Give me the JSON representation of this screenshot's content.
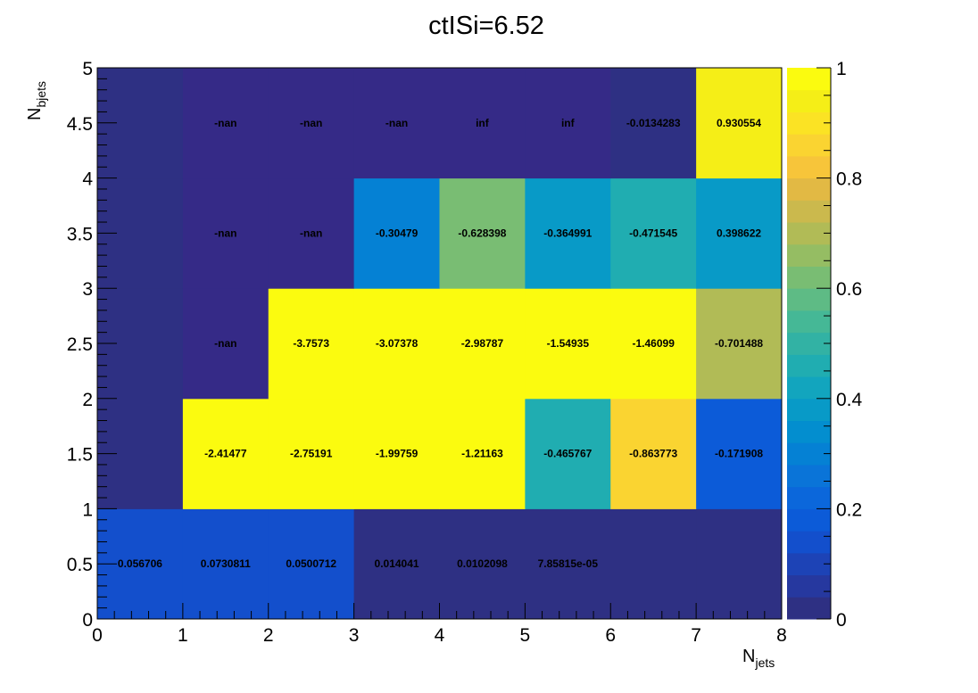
{
  "chart_data": {
    "type": "heatmap",
    "title": "ctISi=6.52",
    "xlabel_main": "N",
    "xlabel_sub": "jets",
    "ylabel_main": "N",
    "ylabel_sub": "bjets",
    "xlim": [
      0,
      8
    ],
    "ylim": [
      0,
      5
    ],
    "x_bins": [
      0,
      1,
      2,
      3,
      4,
      5,
      6,
      7,
      8
    ],
    "y_bins": [
      0,
      1,
      2,
      3,
      4,
      5
    ],
    "x_ticks": [
      "0",
      "1",
      "2",
      "3",
      "4",
      "5",
      "6",
      "7",
      "8"
    ],
    "y_ticks": [
      "0",
      "0.5",
      "1",
      "1.5",
      "2",
      "2.5",
      "3",
      "3.5",
      "4",
      "4.5",
      "5"
    ],
    "zlim": [
      0,
      1
    ],
    "z_ticks": [
      "0",
      "0.2",
      "0.4",
      "0.6",
      "0.8",
      "1"
    ],
    "cells": [
      {
        "ix": 0,
        "iy": 0,
        "color_level": 0.13,
        "label": "0.056706"
      },
      {
        "ix": 1,
        "iy": 0,
        "color_level": 0.13,
        "label": "0.0730811"
      },
      {
        "ix": 2,
        "iy": 0,
        "color_level": 0.13,
        "label": "0.0500712"
      },
      {
        "ix": 3,
        "iy": 0,
        "color_level": 0.01,
        "label": "0.014041"
      },
      {
        "ix": 4,
        "iy": 0,
        "color_level": 0.01,
        "label": "0.0102098"
      },
      {
        "ix": 5,
        "iy": 0,
        "color_level": 0.01,
        "label": "7.85815e-05"
      },
      {
        "ix": 6,
        "iy": 0,
        "color_level": 0.01,
        "label": ""
      },
      {
        "ix": 7,
        "iy": 0,
        "color_level": 0.01,
        "label": ""
      },
      {
        "ix": 0,
        "iy": 1,
        "color_level": 0.01,
        "label": ""
      },
      {
        "ix": 1,
        "iy": 1,
        "color_level": 1.0,
        "label": "-2.41477"
      },
      {
        "ix": 2,
        "iy": 1,
        "color_level": 1.0,
        "label": "-2.75191"
      },
      {
        "ix": 3,
        "iy": 1,
        "color_level": 1.0,
        "label": "-1.99759"
      },
      {
        "ix": 4,
        "iy": 1,
        "color_level": 1.0,
        "label": "-1.21163"
      },
      {
        "ix": 5,
        "iy": 1,
        "color_level": 0.466,
        "label": "-0.465767"
      },
      {
        "ix": 6,
        "iy": 1,
        "color_level": 0.864,
        "label": "-0.863773"
      },
      {
        "ix": 7,
        "iy": 1,
        "color_level": 0.172,
        "label": "-0.171908"
      },
      {
        "ix": 0,
        "iy": 2,
        "color_level": 0.01,
        "label": ""
      },
      {
        "ix": 1,
        "iy": 2,
        "color_level": -1,
        "label": "-nan"
      },
      {
        "ix": 2,
        "iy": 2,
        "color_level": 1.0,
        "label": "-3.7573"
      },
      {
        "ix": 3,
        "iy": 2,
        "color_level": 1.0,
        "label": "-3.07378"
      },
      {
        "ix": 4,
        "iy": 2,
        "color_level": 1.0,
        "label": "-2.98787"
      },
      {
        "ix": 5,
        "iy": 2,
        "color_level": 1.0,
        "label": "-1.54935"
      },
      {
        "ix": 6,
        "iy": 2,
        "color_level": 1.0,
        "label": "-1.46099"
      },
      {
        "ix": 7,
        "iy": 2,
        "color_level": 0.701,
        "label": "-0.701488"
      },
      {
        "ix": 0,
        "iy": 3,
        "color_level": 0.01,
        "label": ""
      },
      {
        "ix": 1,
        "iy": 3,
        "color_level": -1,
        "label": "-nan"
      },
      {
        "ix": 2,
        "iy": 3,
        "color_level": -1,
        "label": "-nan"
      },
      {
        "ix": 3,
        "iy": 3,
        "color_level": 0.305,
        "label": "-0.30479"
      },
      {
        "ix": 4,
        "iy": 3,
        "color_level": 0.628,
        "label": "-0.628398"
      },
      {
        "ix": 5,
        "iy": 3,
        "color_level": 0.365,
        "label": "-0.364991"
      },
      {
        "ix": 6,
        "iy": 3,
        "color_level": 0.472,
        "label": "-0.471545"
      },
      {
        "ix": 7,
        "iy": 3,
        "color_level": 0.399,
        "label": "0.398622"
      },
      {
        "ix": 0,
        "iy": 4,
        "color_level": 0.01,
        "label": ""
      },
      {
        "ix": 1,
        "iy": 4,
        "color_level": -1,
        "label": "-nan"
      },
      {
        "ix": 2,
        "iy": 4,
        "color_level": -1,
        "label": "-nan"
      },
      {
        "ix": 3,
        "iy": 4,
        "color_level": -1,
        "label": "-nan"
      },
      {
        "ix": 4,
        "iy": 4,
        "color_level": -1,
        "label": "inf"
      },
      {
        "ix": 5,
        "iy": 4,
        "color_level": -1,
        "label": "inf"
      },
      {
        "ix": 6,
        "iy": 4,
        "color_level": 0.013,
        "label": "-0.0134283"
      },
      {
        "ix": 7,
        "iy": 4,
        "color_level": 0.93,
        "label": "0.930554"
      }
    ],
    "palette": [
      "#2e3083",
      "#26389f",
      "#1d43b6",
      "#134fcc",
      "#0c5bd8",
      "#0b67db",
      "#0a74d8",
      "#0581d4",
      "#038ecf",
      "#089ac7",
      "#12a5be",
      "#20adb1",
      "#32b2a4",
      "#45b896",
      "#5ebb85",
      "#79bd73",
      "#95bd63",
      "#b1bb56",
      "#cbb94d",
      "#e2b944",
      "#f7c53a",
      "#fad431",
      "#fbe324",
      "#f5ee17",
      "#fbfb0f"
    ],
    "nan_color": "#352a87",
    "grid": false
  }
}
